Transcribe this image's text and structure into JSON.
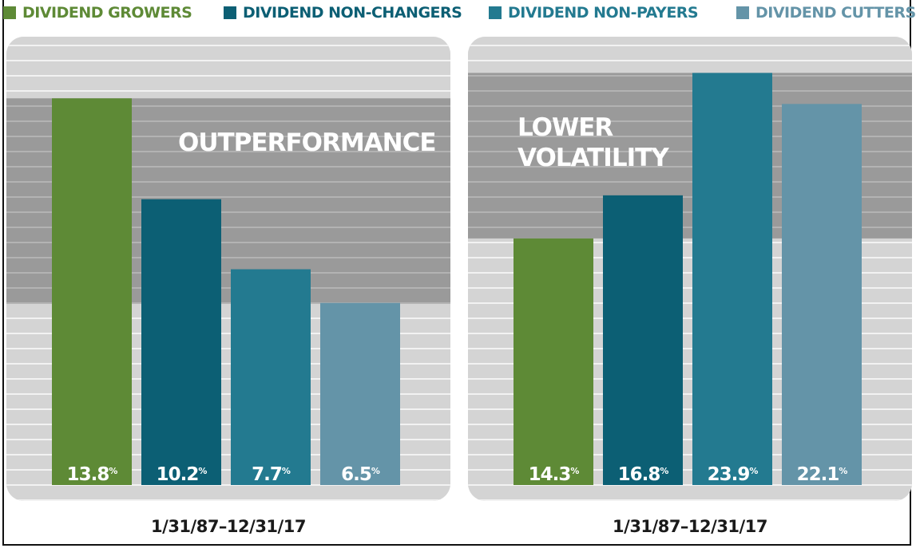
{
  "legend": [
    {
      "label": "DIVIDEND GROWERS",
      "color": "#5e8a36"
    },
    {
      "label": "DIVIDEND NON-CHANGERS",
      "color": "#0c5f74"
    },
    {
      "label": "DIVIDEND NON-PAYERS",
      "color": "#237a90"
    },
    {
      "label": "DIVIDEND CUTTERS",
      "color": "#6494a8"
    }
  ],
  "chart_data": [
    {
      "type": "bar",
      "title": "OUTPERFORMANCE",
      "categories": [
        "Dividend Growers",
        "Dividend Non-Changers",
        "Dividend Non-Payers",
        "Dividend Cutters"
      ],
      "values": [
        13.8,
        10.2,
        7.7,
        6.5
      ],
      "value_labels": [
        "13.8",
        "10.2",
        "7.7",
        "6.5"
      ],
      "unit": "%",
      "xlabel": "1/31/87–12/31/17",
      "ylim": [
        0,
        16
      ],
      "highlight_band": [
        6.5,
        13.8
      ]
    },
    {
      "type": "bar",
      "title_lines": [
        "LOWER",
        "VOLATILITY"
      ],
      "categories": [
        "Dividend Growers",
        "Dividend Non-Changers",
        "Dividend Non-Payers",
        "Dividend Cutters"
      ],
      "values": [
        14.3,
        16.8,
        23.9,
        22.1
      ],
      "value_labels": [
        "14.3",
        "16.8",
        "23.9",
        "22.1"
      ],
      "unit": "%",
      "xlabel": "1/31/87–12/31/17",
      "ylim": [
        0,
        26
      ],
      "highlight_band": [
        14.3,
        23.9
      ]
    }
  ]
}
